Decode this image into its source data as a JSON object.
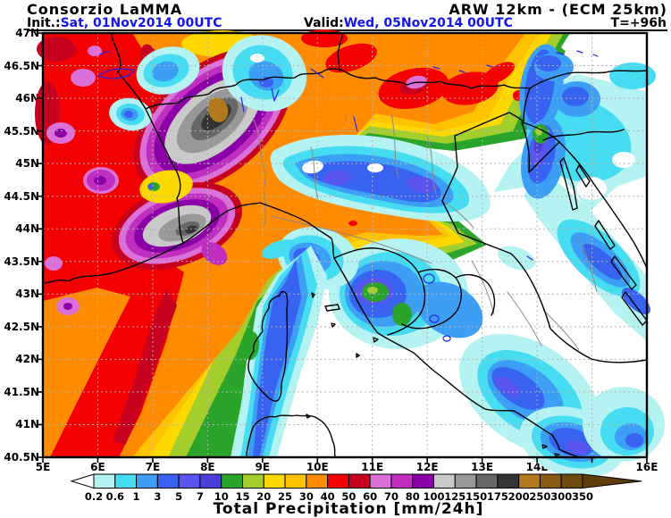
{
  "header": {
    "brand": "Consorzio LaMMA",
    "model": "ARW 12km - (ECM 25km)",
    "init_label": "Init.:",
    "init_value": "Sat, 01Nov2014 00UTC",
    "valid_label": "Valid:",
    "valid_value": "Wed, 05Nov2014 00UTC",
    "lead_time": "T=+96h",
    "datetime_color": "#1414f0"
  },
  "map": {
    "lat_tick_labels": [
      "47N",
      "46.5N",
      "46N",
      "45.5N",
      "45N",
      "44.5N",
      "44N",
      "43.5N",
      "43N",
      "42.5N",
      "42N",
      "41.5N",
      "41N",
      "40.5N"
    ],
    "lon_tick_labels": [
      "5E",
      "6E",
      "7E",
      "8E",
      "9E",
      "10E",
      "11E",
      "12E",
      "13E",
      "14E",
      "15E",
      "16E"
    ],
    "lat_range_deg": [
      40.5,
      47
    ],
    "lon_range_deg": [
      5,
      16
    ],
    "grid_step_lat_deg": 0.5,
    "grid_step_lon_deg": 1
  },
  "chart_data": {
    "type": "heatmap",
    "title": "Total Precipitation [mm/24h]",
    "legend_boundary_labels": [
      "0.2",
      "0.6",
      "1",
      "3",
      "5",
      "7",
      "10",
      "15",
      "20",
      "25",
      "30",
      "40",
      "50",
      "60",
      "70",
      "80",
      "100",
      "125",
      "150",
      "175",
      "200",
      "250",
      "300",
      "350"
    ],
    "levels_mm": [
      0.2,
      0.6,
      1,
      3,
      5,
      7,
      10,
      15,
      20,
      25,
      30,
      40,
      50,
      60,
      70,
      80,
      100,
      125,
      150,
      175,
      200,
      250,
      300,
      350
    ],
    "level_colors": [
      "#b5f2f2",
      "#46dcf2",
      "#3c9ef5",
      "#3763f0",
      "#5a55ee",
      "#4b3fd9",
      "#2aa42a",
      "#a4ce2c",
      "#ffd800",
      "#ffc200",
      "#ff8c00",
      "#f40000",
      "#c6001e",
      "#da70d8",
      "#c02ec0",
      "#8a00a6",
      "#c9c9c9",
      "#989898",
      "#676767",
      "#343434",
      "#b3791d",
      "#8a5913",
      "#6f480c"
    ],
    "under_color": "#ffffff",
    "over_color": "#5e3d09",
    "legend_position": "bottom",
    "map_features": [
      {
        "area": "NW Alps (Aosta/Valais)",
        "peak_band_mm": "200-250"
      },
      {
        "area": "Ligurian Alps (Piedmont-Liguria border)",
        "peak_band_mm": "150-200"
      },
      {
        "area": "SE France / Rhone area",
        "band_mm": "40-100"
      },
      {
        "area": "Northern Alps arc (Lombardy-Trentino-Carnia)",
        "band_mm": "40-60"
      },
      {
        "area": "Central Po valley",
        "band_mm": "1-7"
      },
      {
        "area": "NE Italy and upper Adriatic",
        "band_mm": "0.2-5"
      },
      {
        "area": "Tuscany interior",
        "band_mm": "5-15"
      },
      {
        "area": "Latium / Campania",
        "band_mm": "1-7"
      },
      {
        "area": "Sea west of Corsica-Sardinia",
        "band_mm": "10-50"
      },
      {
        "area": "Central-southern Adriatic",
        "band_mm": "<0.2-3"
      }
    ]
  }
}
